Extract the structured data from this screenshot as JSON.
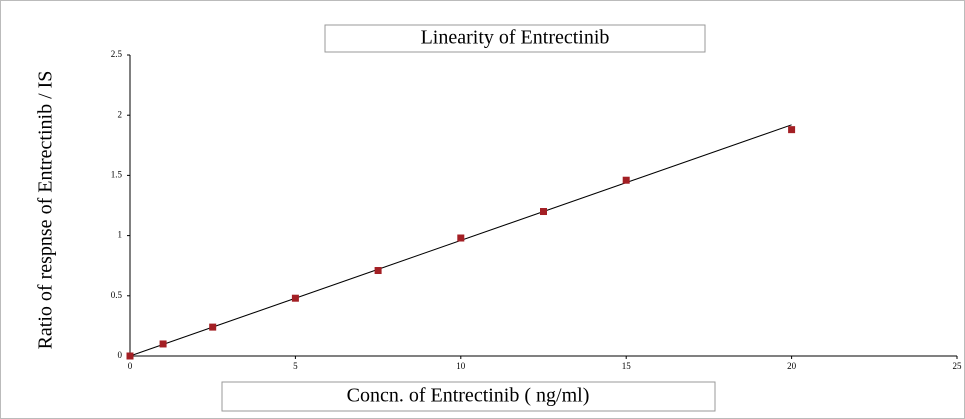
{
  "chart_data": {
    "type": "scatter",
    "title": "Linearity of  Entrectinib",
    "x_label": "Concn. of Entrectinib ( ng/ml)",
    "y_label": "Ratio of respnse of Entrectinib / IS",
    "x": [
      0,
      1,
      2.5,
      5,
      7.5,
      10,
      12.5,
      15,
      20
    ],
    "series": [
      {
        "color": "#a31f24",
        "values": [
          0,
          0.1,
          0.24,
          0.48,
          0.71,
          0.98,
          1.2,
          1.46,
          1.88
        ]
      }
    ],
    "trendline": {
      "x": [
        0,
        20
      ],
      "y": [
        0,
        1.92
      ],
      "color": "#000000"
    },
    "xlim": [
      0,
      25
    ],
    "xticks": [
      0,
      5,
      10,
      15,
      20,
      25
    ],
    "ylim": [
      0,
      2.5
    ],
    "yticks": [
      0,
      0.5,
      1,
      1.5,
      2,
      2.5
    ]
  }
}
